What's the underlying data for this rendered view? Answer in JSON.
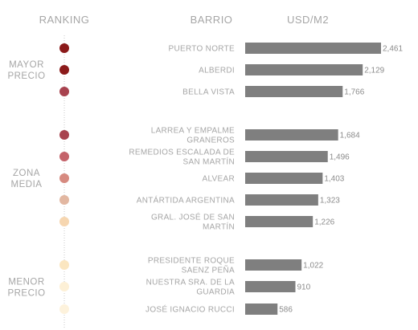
{
  "chart_data": {
    "type": "bar",
    "orientation": "horizontal",
    "headers": {
      "ranking": "RANKING",
      "barrio": "BARRIO",
      "value": "USD/M2"
    },
    "groups": [
      {
        "label": [
          "MAYOR",
          "PRECIO"
        ],
        "first": 0,
        "last": 2
      },
      {
        "label": [
          "ZONA",
          "MEDIA"
        ],
        "first": 3,
        "last": 7
      },
      {
        "label": [
          "MENOR",
          "PRECIO"
        ],
        "first": 8,
        "last": 10
      }
    ],
    "categories": [
      [
        "PUERTO NORTE"
      ],
      [
        "ALBERDI"
      ],
      [
        "BELLA VISTA"
      ],
      [
        "LARREA Y EMPALME",
        "GRANEROS"
      ],
      [
        "REMEDIOS ESCALADA DE",
        "SAN MARTÍN"
      ],
      [
        "ALVEAR"
      ],
      [
        "ANTÁRTIDA ARGENTINA"
      ],
      [
        "GRAL. JOSÉ DE SAN",
        "MARTÍN"
      ],
      [
        "PRESIDENTE ROQUE",
        "SAENZ PEÑA"
      ],
      [
        "NUESTRA SRA. DE LA",
        "GUARDIA"
      ],
      [
        "JOSÉ IGNACIO RUCCI"
      ]
    ],
    "values": [
      2461,
      2129,
      1766,
      1684,
      1496,
      1403,
      1323,
      1226,
      1022,
      910,
      586
    ],
    "value_labels": [
      "2,461",
      "2,129",
      "1,766",
      "1,684",
      "1,496",
      "1,403",
      "1,323",
      "1,226",
      "1,022",
      "910",
      "586"
    ],
    "dot_colors": [
      "#8b1a1a",
      "#8b1a1a",
      "#a8434f",
      "#a8434f",
      "#c4636a",
      "#d68a80",
      "#e2b7a1",
      "#f6d6b0",
      "#fbe6c0",
      "#fdf0d6",
      "#fdf2dc"
    ],
    "bar_color": "#7f7f7f",
    "xlim": [
      0,
      2500
    ]
  }
}
